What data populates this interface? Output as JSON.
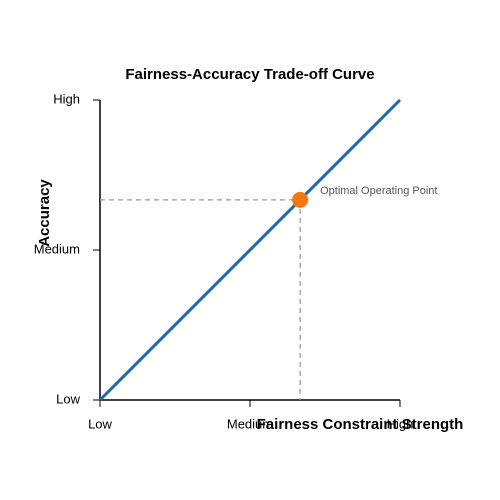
{
  "chart_data": {
    "type": "line",
    "title": "Fairness-Accuracy Trade-off Curve",
    "xlabel": "Fairness Constraint Strength",
    "ylabel": "Accuracy",
    "x": [
      0,
      1
    ],
    "series": [
      {
        "color": "#1f67b0",
        "values": [
          0,
          1
        ]
      }
    ],
    "xlim": [
      0,
      1
    ],
    "ylim": [
      0,
      1
    ],
    "xticks": [
      {
        "value": 0,
        "label": "Low"
      },
      {
        "value": 0.5,
        "label": "Medium"
      },
      {
        "value": 1,
        "label": "High"
      }
    ],
    "yticks": [
      {
        "value": 0,
        "label": "Low"
      },
      {
        "value": 0.5,
        "label": "Medium"
      },
      {
        "value": 1,
        "label": "High"
      }
    ],
    "point": {
      "x": 0.667,
      "y": 0.667,
      "label": "Optimal Operating Point",
      "color": "#f5770f"
    },
    "grid": false
  }
}
